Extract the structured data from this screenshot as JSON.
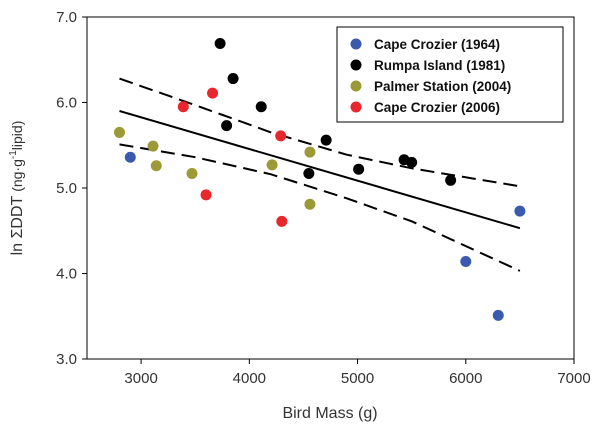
{
  "chart_data": {
    "type": "scatter",
    "xlabel": "Bird Mass (g)",
    "ylabel_prefix": "ln ",
    "ylabel_sigma": "ΣDDT",
    "ylabel_unit_open": " (ng·g",
    "ylabel_superscript": "-1",
    "ylabel_unit_close": "lipid)",
    "xlim": [
      2500,
      7000
    ],
    "ylim": [
      3.0,
      7.0
    ],
    "xticks": [
      3000,
      4000,
      5000,
      6000,
      7000
    ],
    "yticks": [
      "3.0",
      "4.0",
      "5.0",
      "6.0",
      "7.0"
    ],
    "ytick_values": [
      3.0,
      4.0,
      5.0,
      6.0,
      7.0
    ],
    "grid": false,
    "legend_position": "top-right",
    "series": [
      {
        "name": "Cape Crozier (1964)",
        "color": "#3a5aad",
        "x": [
          2900,
          6000,
          6300,
          6500
        ],
        "y": [
          5.36,
          4.14,
          3.51,
          4.73
        ]
      },
      {
        "name": "Rumpa Island (1981)",
        "color": "#000000",
        "x": [
          3730,
          3790,
          3850,
          4110,
          4550,
          4710,
          5010,
          5430,
          5500,
          5860
        ],
        "y": [
          6.69,
          5.73,
          6.28,
          5.95,
          5.17,
          5.56,
          5.22,
          5.33,
          5.3,
          5.09
        ]
      },
      {
        "name": "Palmer Station (2004)",
        "color": "#9c9a36",
        "x": [
          2800,
          3110,
          3140,
          3470,
          4210,
          4560,
          4560
        ],
        "y": [
          5.65,
          5.49,
          5.26,
          5.17,
          5.27,
          5.42,
          4.81
        ]
      },
      {
        "name": "Cape Crozier (2006)",
        "color": "#e8262b",
        "x": [
          3390,
          3660,
          3600,
          4290,
          4300
        ],
        "y": [
          5.95,
          6.11,
          4.92,
          5.61,
          4.61
        ]
      }
    ],
    "regression": {
      "x": [
        2800,
        6500
      ],
      "y": [
        5.9,
        4.53
      ]
    },
    "ci_upper": {
      "x": [
        2800,
        3500,
        4200,
        4900,
        5500,
        6500
      ],
      "y": [
        6.28,
        5.97,
        5.65,
        5.39,
        5.23,
        5.02
      ]
    },
    "ci_lower": {
      "x": [
        2800,
        3500,
        4200,
        4900,
        5500,
        6500
      ],
      "y": [
        5.51,
        5.36,
        5.16,
        4.88,
        4.61,
        4.03
      ]
    }
  }
}
